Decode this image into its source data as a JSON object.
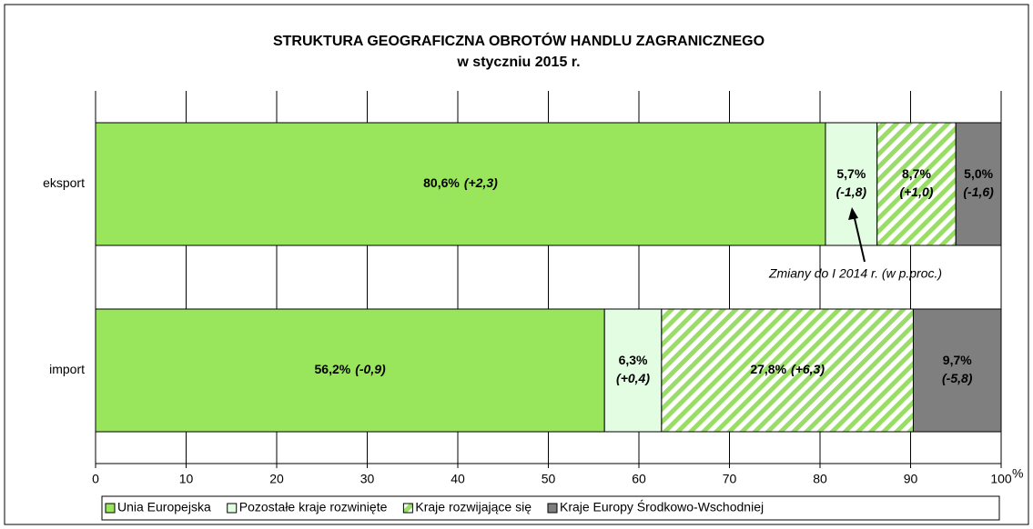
{
  "chart_data": {
    "type": "stacked_hbar",
    "title": "STRUKTURA GEOGRAFICZNA OBROTÓW HANDLU ZAGRANICZNEGO",
    "subtitle": "w styczniu 2015 r.",
    "categories": [
      "eksport",
      "import"
    ],
    "series": [
      {
        "name": "Unia Europejska",
        "color": "#99e65c",
        "label_color": "#000000",
        "values": [
          80.6,
          56.2
        ],
        "value_labels": [
          "80,6%",
          "56,2%"
        ],
        "change_labels": [
          "(+2,3)",
          "(-0,9)"
        ]
      },
      {
        "name": "Pozostałe kraje rozwinięte",
        "color": "#e2fde2",
        "label_color": "#000000",
        "values": [
          5.7,
          6.3
        ],
        "value_labels": [
          "5,7%",
          "6,3%"
        ],
        "change_labels": [
          "(-1,8)",
          "(+0,4)"
        ]
      },
      {
        "name": "Kraje rozwijające się",
        "color": "#99dd66",
        "pattern": "stripes",
        "label_color": "#000000",
        "values": [
          8.7,
          27.8
        ],
        "value_labels": [
          "8,7%",
          "27,8%"
        ],
        "change_labels": [
          "(+1,0)",
          "(+6,3)"
        ]
      },
      {
        "name": "Kraje Europy Środkowo-Wschodniej",
        "color": "#7f7f7f",
        "label_color": "#ffffff",
        "values": [
          5.0,
          9.7
        ],
        "value_labels": [
          "5,0%",
          "9,7%"
        ],
        "change_labels": [
          "(-1,6)",
          "(-5,8)"
        ]
      }
    ],
    "annotation": "Zmiany do I 2014 r. (w p.proc.)",
    "xlabel": "%",
    "xlim": [
      0,
      100
    ],
    "xticks": [
      0,
      10,
      20,
      30,
      40,
      50,
      60,
      70,
      80,
      90,
      100
    ],
    "grid": true,
    "legend": "bottom"
  }
}
